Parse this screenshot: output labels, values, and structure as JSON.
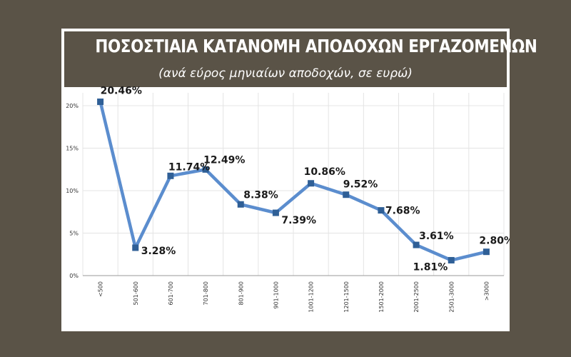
{
  "header": {
    "title": "ΠΟΣΟΣΤΙΑΙΑ ΚΑΤΑΝΟΜΗ ΑΠΟΔΟΧΩΝ ΕΡΓΑΖΟΜΕΝΩΝ",
    "subtitle": "(ανά εύρος μηνιαίων αποδοχών, σε ευρώ)"
  },
  "colors": {
    "background": "#5a5347",
    "header_bg": "#5a5347",
    "line": "#5b8dce",
    "marker": "#2f5f96",
    "grid": "#e4e4e4"
  },
  "chart_data": {
    "type": "line",
    "title": "ΠΟΣΟΣΤΙΑΙΑ ΚΑΤΑΝΟΜΗ ΑΠΟΔΟΧΩΝ ΕΡΓΑΖΟΜΕΝΩΝ",
    "subtitle": "(ανά εύρος μηνιαίων αποδοχών, σε ευρώ)",
    "xlabel": "",
    "ylabel": "",
    "categories": [
      "<500",
      "501-600",
      "601-700",
      "701-800",
      "801-900",
      "901-1000",
      "1001-1200",
      "1201-1500",
      "1501-2000",
      "2001-2500",
      "2501-3000",
      ">3000"
    ],
    "values": [
      20.46,
      3.28,
      11.74,
      12.49,
      8.38,
      7.39,
      10.86,
      9.52,
      7.68,
      3.61,
      1.81,
      2.8
    ],
    "data_labels": [
      "20.46%",
      "3.28%",
      "11.74%",
      "12.49%",
      "8.38%",
      "7.39%",
      "10.86%",
      "9.52%",
      "7.68%",
      "3.61%",
      "1.81%",
      "2.80%"
    ],
    "ylim": [
      0,
      20
    ],
    "yticks": [
      0,
      5,
      10,
      15,
      20
    ],
    "ytick_labels": [
      "0%",
      "5%",
      "10%",
      "15%",
      "20%"
    ],
    "grid": true,
    "legend": "none"
  }
}
